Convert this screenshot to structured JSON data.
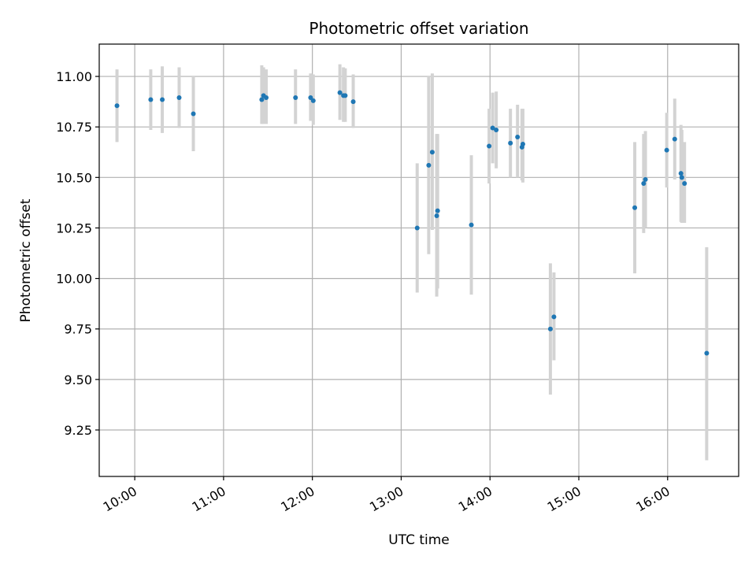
{
  "chart_data": {
    "type": "scatter",
    "title": "Photometric offset variation",
    "xlabel": "UTC time",
    "ylabel": "Photometric offset",
    "x_unit": "hours UTC",
    "xlim": [
      9.6,
      16.8
    ],
    "ylim": [
      9.02,
      11.16
    ],
    "grid": true,
    "x_ticks": [
      {
        "value": 10,
        "label": "10:00"
      },
      {
        "value": 11,
        "label": "11:00"
      },
      {
        "value": 12,
        "label": "12:00"
      },
      {
        "value": 13,
        "label": "13:00"
      },
      {
        "value": 14,
        "label": "14:00"
      },
      {
        "value": 15,
        "label": "15:00"
      },
      {
        "value": 16,
        "label": "16:00"
      }
    ],
    "y_ticks": [
      {
        "value": 9.25,
        "label": "9.25"
      },
      {
        "value": 9.5,
        "label": "9.50"
      },
      {
        "value": 9.75,
        "label": "9.75"
      },
      {
        "value": 10.0,
        "label": "10.00"
      },
      {
        "value": 10.25,
        "label": "10.25"
      },
      {
        "value": 10.5,
        "label": "10.50"
      },
      {
        "value": 10.75,
        "label": "10.75"
      },
      {
        "value": 11.0,
        "label": "11.00"
      }
    ],
    "colors": {
      "point": "#1f77b4",
      "errorbar": "#d3d3d3",
      "grid": "#b0b0b0"
    },
    "points": [
      {
        "x": 9.8,
        "y": 10.855,
        "err_low": 10.675,
        "err_high": 11.035
      },
      {
        "x": 10.18,
        "y": 10.885,
        "err_low": 10.735,
        "err_high": 11.035
      },
      {
        "x": 10.31,
        "y": 10.885,
        "err_low": 10.72,
        "err_high": 11.05
      },
      {
        "x": 10.5,
        "y": 10.895,
        "err_low": 10.745,
        "err_high": 11.045
      },
      {
        "x": 10.66,
        "y": 10.815,
        "err_low": 10.63,
        "err_high": 11.0
      },
      {
        "x": 11.43,
        "y": 10.885,
        "err_low": 10.765,
        "err_high": 11.055
      },
      {
        "x": 11.45,
        "y": 10.905,
        "err_low": 10.765,
        "err_high": 11.045
      },
      {
        "x": 11.48,
        "y": 10.895,
        "err_low": 10.765,
        "err_high": 11.035
      },
      {
        "x": 11.81,
        "y": 10.895,
        "err_low": 10.765,
        "err_high": 11.035
      },
      {
        "x": 11.98,
        "y": 10.895,
        "err_low": 10.78,
        "err_high": 11.015
      },
      {
        "x": 12.01,
        "y": 10.88,
        "err_low": 10.76,
        "err_high": 11.01
      },
      {
        "x": 12.31,
        "y": 10.92,
        "err_low": 10.785,
        "err_high": 11.06
      },
      {
        "x": 12.35,
        "y": 10.905,
        "err_low": 10.775,
        "err_high": 11.045
      },
      {
        "x": 12.37,
        "y": 10.905,
        "err_low": 10.775,
        "err_high": 11.04
      },
      {
        "x": 12.46,
        "y": 10.875,
        "err_low": 10.745,
        "err_high": 11.01
      },
      {
        "x": 13.18,
        "y": 10.25,
        "err_low": 9.93,
        "err_high": 10.57
      },
      {
        "x": 13.31,
        "y": 10.56,
        "err_low": 10.12,
        "err_high": 11.0
      },
      {
        "x": 13.35,
        "y": 10.625,
        "err_low": 10.24,
        "err_high": 11.015
      },
      {
        "x": 13.4,
        "y": 10.31,
        "err_low": 9.91,
        "err_high": 10.715
      },
      {
        "x": 13.41,
        "y": 10.335,
        "err_low": 9.95,
        "err_high": 10.715
      },
      {
        "x": 13.79,
        "y": 10.265,
        "err_low": 9.92,
        "err_high": 10.61
      },
      {
        "x": 13.99,
        "y": 10.655,
        "err_low": 10.47,
        "err_high": 10.84
      },
      {
        "x": 14.03,
        "y": 10.745,
        "err_low": 10.57,
        "err_high": 10.92
      },
      {
        "x": 14.07,
        "y": 10.735,
        "err_low": 10.545,
        "err_high": 10.925
      },
      {
        "x": 14.23,
        "y": 10.67,
        "err_low": 10.5,
        "err_high": 10.84
      },
      {
        "x": 14.31,
        "y": 10.7,
        "err_low": 10.5,
        "err_high": 10.86
      },
      {
        "x": 14.36,
        "y": 10.65,
        "err_low": 10.485,
        "err_high": 10.84
      },
      {
        "x": 14.37,
        "y": 10.665,
        "err_low": 10.475,
        "err_high": 10.84
      },
      {
        "x": 14.68,
        "y": 9.75,
        "err_low": 9.425,
        "err_high": 10.075
      },
      {
        "x": 14.72,
        "y": 9.81,
        "err_low": 9.595,
        "err_high": 10.03
      },
      {
        "x": 15.63,
        "y": 10.35,
        "err_low": 10.025,
        "err_high": 10.675
      },
      {
        "x": 15.73,
        "y": 10.47,
        "err_low": 10.225,
        "err_high": 10.715
      },
      {
        "x": 15.75,
        "y": 10.49,
        "err_low": 10.25,
        "err_high": 10.73
      },
      {
        "x": 15.99,
        "y": 10.635,
        "err_low": 10.45,
        "err_high": 10.82
      },
      {
        "x": 16.08,
        "y": 10.69,
        "err_low": 10.49,
        "err_high": 10.89
      },
      {
        "x": 16.15,
        "y": 10.52,
        "err_low": 10.28,
        "err_high": 10.76
      },
      {
        "x": 16.16,
        "y": 10.5,
        "err_low": 10.275,
        "err_high": 10.735
      },
      {
        "x": 16.19,
        "y": 10.47,
        "err_low": 10.275,
        "err_high": 10.675
      },
      {
        "x": 16.44,
        "y": 9.63,
        "err_low": 9.1,
        "err_high": 10.155
      }
    ]
  }
}
